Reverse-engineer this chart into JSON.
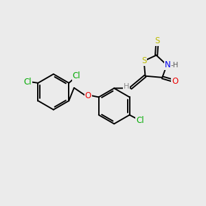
{
  "background_color": "#ebebeb",
  "fig_size": [
    3.0,
    3.0
  ],
  "dpi": 100,
  "atom_colors": {
    "C": "#000000",
    "H": "#888888",
    "N": "#0000ee",
    "O": "#ee0000",
    "S": "#bbbb00",
    "Cl": "#00aa00"
  },
  "bond_color": "#000000",
  "bond_width": 1.4,
  "font_size": 8.5
}
